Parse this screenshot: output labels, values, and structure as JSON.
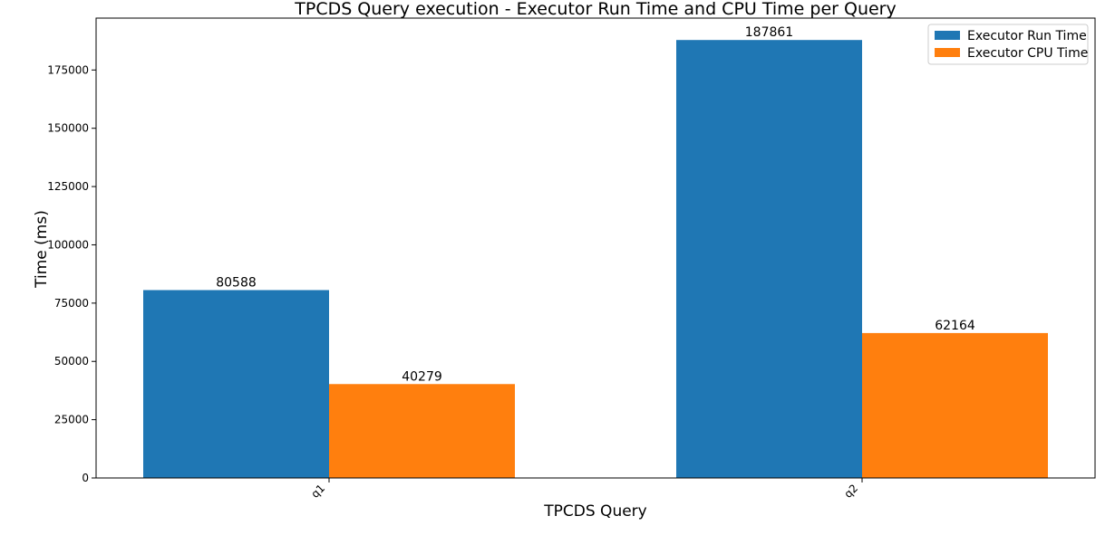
{
  "chart_data": {
    "type": "bar",
    "title": "TPCDS Query execution - Executor Run Time and CPU Time per Query",
    "xlabel": "TPCDS Query",
    "ylabel": "Time (ms)",
    "categories": [
      "q1",
      "q2"
    ],
    "series": [
      {
        "name": "Executor Run Time",
        "values": [
          80588,
          187861
        ],
        "color": "#1f77b4"
      },
      {
        "name": "Executor CPU Time",
        "values": [
          40279,
          62164
        ],
        "color": "#ff7f0e"
      }
    ],
    "ylim": [
      0,
      197254
    ],
    "yticks": [
      0,
      25000,
      50000,
      75000,
      100000,
      125000,
      150000,
      175000
    ],
    "ytick_labels": [
      "0",
      "25000",
      "50000",
      "75000",
      "100000",
      "125000",
      "150000",
      "175000"
    ],
    "grid": false,
    "legend_position": "top-right",
    "xtick_rotation": "45"
  }
}
